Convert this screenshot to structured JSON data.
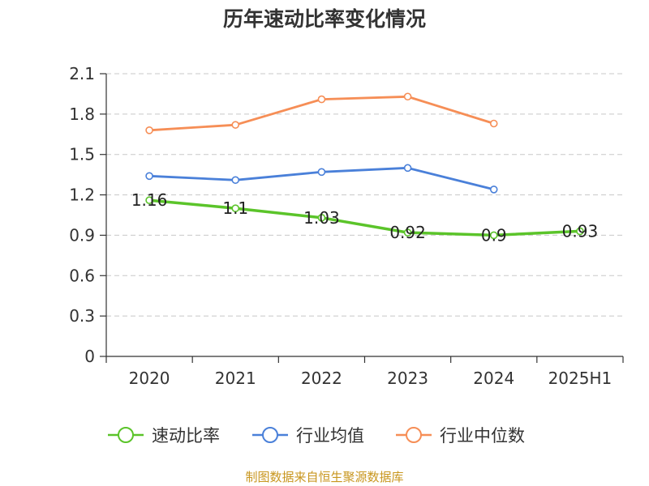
{
  "title": "历年速动比率变化情况",
  "source": "制图数据来自恒生聚源数据库",
  "chart_data": {
    "type": "line",
    "title": "历年速动比率变化情况",
    "categories": [
      "2020",
      "2021",
      "2022",
      "2023",
      "2024",
      "2025H1"
    ],
    "ylim": [
      0,
      2.1
    ],
    "yticks": [
      0,
      0.3,
      0.6,
      0.9,
      1.2,
      1.5,
      1.8,
      2.1
    ],
    "ytick_labels": [
      "0",
      "0.3",
      "0.6",
      "0.9",
      "1.2",
      "1.5",
      "1.8",
      "2.1"
    ],
    "grid": true,
    "legend_position": "bottom",
    "series": [
      {
        "name": "速动比率",
        "color": "#5bc42a",
        "values": [
          1.16,
          1.1,
          1.03,
          0.92,
          0.9,
          0.93
        ],
        "labels": [
          "1.16",
          "1.1",
          "1.03",
          "0.92",
          "0.9",
          "0.93"
        ]
      },
      {
        "name": "行业均值",
        "color": "#4a80d9",
        "values": [
          1.34,
          1.31,
          1.37,
          1.4,
          1.24,
          null
        ]
      },
      {
        "name": "行业中位数",
        "color": "#f68e56",
        "values": [
          1.68,
          1.72,
          1.91,
          1.93,
          1.73,
          null
        ]
      }
    ]
  }
}
